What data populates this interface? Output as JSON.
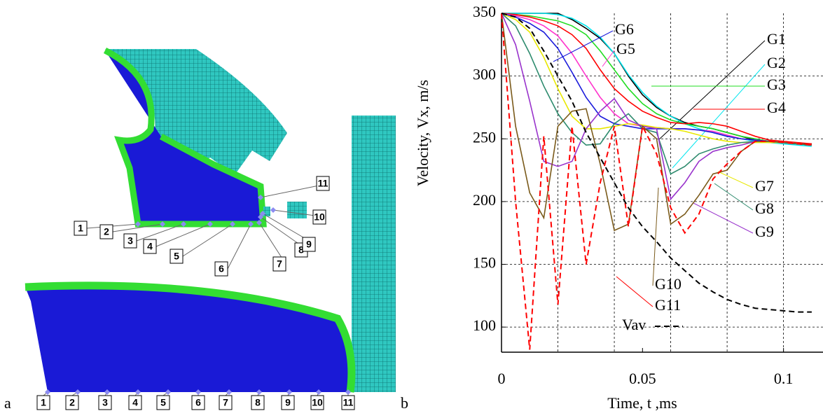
{
  "panel_a": {
    "label": "a",
    "top_labels": [
      "1",
      "2",
      "3",
      "4",
      "5",
      "6",
      "7",
      "8",
      "9",
      "10",
      "11"
    ],
    "bottom_labels": [
      "1",
      "2",
      "3",
      "4",
      "5",
      "6",
      "7",
      "8",
      "9",
      "10",
      "11"
    ]
  },
  "chart_data": {
    "type": "line",
    "panel_label": "b",
    "x_label": "Time, t ,ms",
    "y_label": "Velocity, Vx, m/s",
    "x": [
      0,
      0.005,
      0.01,
      0.015,
      0.02,
      0.025,
      0.03,
      0.035,
      0.04,
      0.045,
      0.05,
      0.055,
      0.06,
      0.065,
      0.07,
      0.075,
      0.08,
      0.085,
      0.09,
      0.095,
      0.1,
      0.105,
      0.11
    ],
    "xlim": [
      0,
      0.114
    ],
    "ylim": [
      80,
      350
    ],
    "xticks": [
      0,
      0.05,
      0.1
    ],
    "yticks": [
      100,
      150,
      200,
      250,
      300,
      350
    ],
    "xgrid": [
      0.02,
      0.04,
      0.06,
      0.08,
      0.1
    ],
    "ygrid": [
      100,
      150,
      200,
      250,
      300
    ],
    "series": [
      {
        "name": "G1",
        "color": "#000000",
        "values": [
          350,
          350,
          350,
          350,
          350,
          345,
          338,
          330,
          318,
          300,
          285,
          275,
          268,
          263,
          260,
          258,
          255,
          252,
          249,
          248,
          247,
          246,
          246
        ]
      },
      {
        "name": "G2",
        "color": "#00e5ee",
        "values": [
          350,
          350,
          350,
          350,
          349,
          346,
          340,
          331,
          318,
          301,
          287,
          276,
          268,
          262,
          258,
          255,
          252,
          250,
          248,
          247,
          246,
          245,
          244
        ]
      },
      {
        "name": "G3",
        "color": "#22dd22",
        "values": [
          350,
          349,
          348,
          346,
          344,
          340,
          333,
          320,
          305,
          290,
          278,
          270,
          265,
          262,
          260,
          258,
          255,
          252,
          250,
          248,
          247,
          246,
          245
        ]
      },
      {
        "name": "G4",
        "color": "#ff0000",
        "values": [
          350,
          349,
          347,
          344,
          340,
          333,
          322,
          305,
          290,
          280,
          272,
          267,
          263,
          262,
          263,
          262,
          260,
          256,
          252,
          249,
          248,
          247,
          246
        ]
      },
      {
        "name": "G5",
        "color": "#ff33cc",
        "values": [
          350,
          348,
          345,
          340,
          332,
          318,
          300,
          283,
          270,
          262,
          260,
          259,
          258,
          258,
          257,
          256,
          253,
          250,
          249,
          248,
          247,
          246,
          245
        ]
      },
      {
        "name": "G6",
        "color": "#1b1bdb",
        "values": [
          350,
          347,
          342,
          335,
          322,
          303,
          283,
          268,
          262,
          260,
          258,
          258,
          258,
          258,
          257,
          255,
          252,
          250,
          249,
          248,
          247,
          246,
          245
        ]
      },
      {
        "name": "G7",
        "color": "#e8e800",
        "values": [
          350,
          345,
          335,
          315,
          290,
          268,
          258,
          258,
          260,
          262,
          261,
          259,
          258,
          256,
          253,
          250,
          248,
          247,
          247,
          247,
          247,
          246,
          245
        ]
      },
      {
        "name": "G8",
        "color": "#2e8b6e",
        "values": [
          350,
          340,
          318,
          292,
          270,
          255,
          245,
          246,
          262,
          270,
          258,
          255,
          222,
          228,
          238,
          242,
          245,
          247,
          248,
          248,
          247,
          246,
          245
        ]
      },
      {
        "name": "G9",
        "color": "#9933cc",
        "values": [
          350,
          325,
          280,
          232,
          228,
          232,
          258,
          272,
          282,
          265,
          260,
          258,
          202,
          215,
          232,
          240,
          243,
          245,
          248,
          248,
          247,
          246,
          245
        ]
      },
      {
        "name": "G10",
        "color": "#7a5a1a",
        "values": [
          350,
          260,
          207,
          187,
          260,
          272,
          274,
          230,
          177,
          182,
          260,
          250,
          182,
          190,
          205,
          222,
          225,
          240,
          248,
          248,
          247,
          246,
          245
        ]
      },
      {
        "name": "G11",
        "color": "#ff0000",
        "dashed": true,
        "values": [
          350,
          200,
          82,
          252,
          118,
          260,
          150,
          215,
          260,
          180,
          260,
          238,
          195,
          175,
          190,
          218,
          230,
          240,
          248,
          248,
          247,
          246,
          245
        ]
      },
      {
        "name": "Vav",
        "color": "#000000",
        "dashed": true,
        "values": [
          350,
          347,
          338,
          320,
          300,
          280,
          255,
          235,
          215,
          195,
          180,
          168,
          155,
          145,
          135,
          128,
          122,
          118,
          115,
          114,
          113,
          112,
          112
        ]
      }
    ]
  }
}
